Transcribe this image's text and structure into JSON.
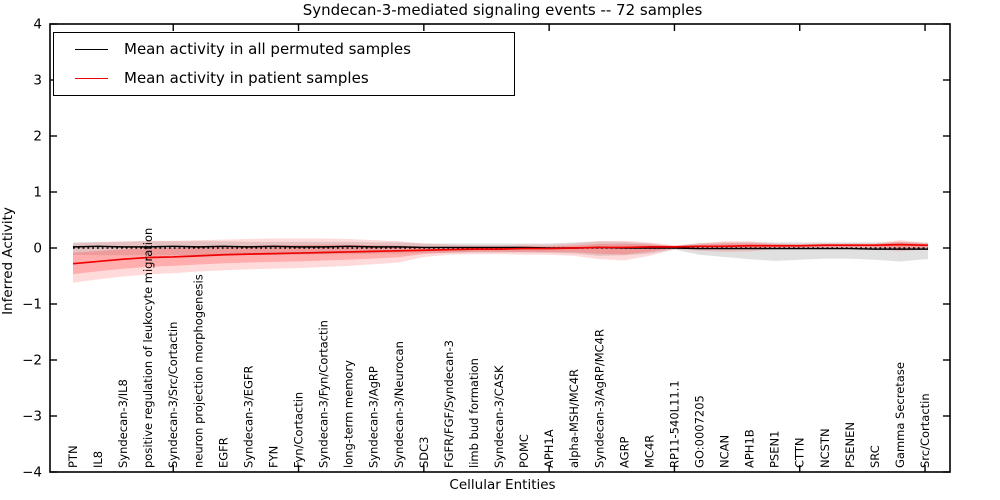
{
  "chart_data": {
    "type": "line",
    "title": "Syndecan-3-mediated signaling events -- 72 samples",
    "xlabel": "Cellular Entities",
    "ylabel": "Inferred Activity",
    "ylim": [
      -4,
      4
    ],
    "yticks": [
      4,
      3,
      2,
      1,
      0,
      -1,
      -2,
      -3,
      -4
    ],
    "x_major_tick_every": 5,
    "grid": false,
    "legend_position": "upper left",
    "zero_line_style": "dotted",
    "categories": [
      "PTN",
      "IL8",
      "Syndecan-3/IL8",
      "positive regulation of leukocyte migration",
      "Syndecan-3/Src/Cortactin",
      "neuron projection morphogenesis",
      "EGFR",
      "Syndecan-3/EGFR",
      "FYN",
      "Fyn/Cortactin",
      "Syndecan-3/Fyn/Cortactin",
      "long-term memory",
      "Syndecan-3/AgRP",
      "Syndecan-3/Neurocan",
      "SDC3",
      "FGFR/FGF/Syndecan-3",
      "limb bud formation",
      "Syndecan-3/CASK",
      "POMC",
      "APH1A",
      "alpha-MSH/MC4R",
      "Syndecan-3/AgRP/MC4R",
      "AGRP",
      "MC4R",
      "RP11-540L11.1",
      "GO:0007205",
      "NCAN",
      "APH1B",
      "PSEN1",
      "CTTN",
      "NCSTN",
      "PSENEN",
      "SRC",
      "Gamma Secretase",
      "Src/Cortactin"
    ],
    "series": [
      {
        "name": "Mean activity in all permuted samples",
        "color": "#000000",
        "band_color": "#999999",
        "band_inner": false,
        "values": [
          0.02,
          0.03,
          0.02,
          0.02,
          0.03,
          0.02,
          0.03,
          0.02,
          0.03,
          0.02,
          0.02,
          0.03,
          0.02,
          0.02,
          0.01,
          0.01,
          0.01,
          0.01,
          0.01,
          0.0,
          0.0,
          0.01,
          0.0,
          0.0,
          0.0,
          -0.01,
          -0.01,
          -0.01,
          -0.01,
          -0.01,
          -0.01,
          -0.01,
          -0.02,
          -0.02,
          -0.02
        ],
        "band_upper": [
          0.1,
          0.11,
          0.11,
          0.12,
          0.12,
          0.12,
          0.12,
          0.11,
          0.11,
          0.11,
          0.11,
          0.11,
          0.1,
          0.1,
          0.08,
          0.08,
          0.08,
          0.08,
          0.08,
          0.08,
          0.1,
          0.12,
          0.11,
          0.08,
          0.03,
          0.09,
          0.1,
          0.1,
          0.1,
          0.1,
          0.1,
          0.1,
          0.1,
          0.11,
          0.1
        ],
        "band_lower": [
          -0.12,
          -0.13,
          -0.13,
          -0.13,
          -0.13,
          -0.13,
          -0.12,
          -0.12,
          -0.12,
          -0.12,
          -0.11,
          -0.11,
          -0.1,
          -0.1,
          -0.09,
          -0.09,
          -0.08,
          -0.08,
          -0.08,
          -0.09,
          -0.1,
          -0.14,
          -0.13,
          -0.1,
          -0.03,
          -0.12,
          -0.16,
          -0.2,
          -0.23,
          -0.21,
          -0.19,
          -0.19,
          -0.21,
          -0.24,
          -0.2
        ]
      },
      {
        "name": "Mean activity in patient samples",
        "color": "#ee0000",
        "band_color": "#ff4444",
        "band_inner": true,
        "values": [
          -0.28,
          -0.24,
          -0.2,
          -0.17,
          -0.16,
          -0.14,
          -0.12,
          -0.11,
          -0.1,
          -0.09,
          -0.08,
          -0.07,
          -0.06,
          -0.05,
          -0.04,
          -0.03,
          -0.02,
          -0.02,
          -0.01,
          -0.01,
          0.0,
          0.01,
          0.01,
          0.02,
          0.02,
          0.03,
          0.03,
          0.04,
          0.04,
          0.04,
          0.05,
          0.05,
          0.05,
          0.06,
          0.05
        ],
        "band_upper": [
          0.08,
          0.1,
          0.12,
          0.13,
          0.13,
          0.14,
          0.15,
          0.16,
          0.17,
          0.17,
          0.17,
          0.16,
          0.14,
          0.12,
          0.08,
          0.06,
          0.05,
          0.05,
          0.06,
          0.06,
          0.08,
          0.12,
          0.13,
          0.1,
          0.05,
          0.08,
          0.12,
          0.12,
          0.08,
          0.07,
          0.08,
          0.08,
          0.08,
          0.14,
          0.09
        ],
        "band_lower": [
          -0.62,
          -0.56,
          -0.51,
          -0.47,
          -0.45,
          -0.42,
          -0.4,
          -0.38,
          -0.37,
          -0.36,
          -0.34,
          -0.32,
          -0.29,
          -0.26,
          -0.16,
          -0.12,
          -0.11,
          -0.11,
          -0.12,
          -0.12,
          -0.14,
          -0.2,
          -0.22,
          -0.14,
          -0.02,
          -0.05,
          -0.07,
          -0.06,
          -0.02,
          -0.01,
          -0.02,
          -0.02,
          -0.02,
          -0.06,
          -0.03
        ]
      }
    ]
  }
}
